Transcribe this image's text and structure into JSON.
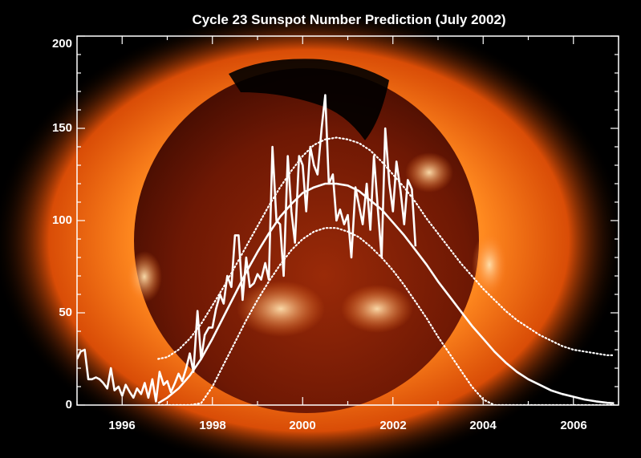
{
  "chart_data": {
    "type": "line",
    "title": "Cycle 23 Sunspot Number Prediction (July 2002)",
    "xlabel": "",
    "ylabel": "",
    "xlim": [
      1995.0,
      2007.0
    ],
    "ylim": [
      0,
      200
    ],
    "x_ticks": [
      1996,
      1998,
      2000,
      2002,
      2004,
      2006
    ],
    "y_ticks": [
      0,
      50,
      100,
      150,
      200
    ],
    "grid": false,
    "legend": "none",
    "colors": {
      "background": "#000000",
      "lines": "#ffffff",
      "sun_core": "#6a1604",
      "sun_corona": "#ff6a10"
    },
    "series": [
      {
        "style": "solid-jagged",
        "x": [
          1995.0,
          1995.08,
          1995.17,
          1995.25,
          1995.33,
          1995.42,
          1995.5,
          1995.58,
          1995.67,
          1995.75,
          1995.83,
          1995.92,
          1996.0,
          1996.08,
          1996.17,
          1996.25,
          1996.33,
          1996.42,
          1996.5,
          1996.58,
          1996.67,
          1996.75,
          1996.83,
          1996.92,
          1997.0,
          1997.08,
          1997.17,
          1997.25,
          1997.33,
          1997.42,
          1997.5,
          1997.58,
          1997.67,
          1997.75,
          1997.83,
          1997.92,
          1998.0,
          1998.08,
          1998.17,
          1998.25,
          1998.33,
          1998.42,
          1998.5,
          1998.58,
          1998.67,
          1998.75,
          1998.83,
          1998.92,
          1999.0,
          1999.08,
          1999.17,
          1999.25,
          1999.33,
          1999.42,
          1999.5,
          1999.58,
          1999.67,
          1999.75,
          1999.83,
          1999.92,
          2000.0,
          2000.08,
          2000.17,
          2000.25,
          2000.33,
          2000.42,
          2000.5,
          2000.58,
          2000.67,
          2000.75,
          2000.83,
          2000.92,
          2001.0,
          2001.08,
          2001.17,
          2001.25,
          2001.33,
          2001.42,
          2001.5,
          2001.58,
          2001.67,
          2001.75,
          2001.83,
          2001.92,
          2002.0,
          2002.08,
          2002.17,
          2002.25,
          2002.33,
          2002.42,
          2002.5
        ],
        "y": [
          25,
          29,
          30,
          14,
          14,
          15,
          14,
          12,
          9,
          20,
          8,
          10,
          5,
          11,
          7,
          4,
          9,
          6,
          12,
          4,
          14,
          2,
          18,
          11,
          13,
          7,
          12,
          17,
          13,
          20,
          28,
          18,
          51,
          25,
          38,
          42,
          42,
          52,
          60,
          55,
          70,
          64,
          92,
          92,
          57,
          80,
          64,
          66,
          71,
          68,
          77,
          68,
          140,
          100,
          98,
          70,
          135,
          105,
          88,
          135,
          130,
          105,
          140,
          130,
          125,
          150,
          168,
          120,
          125,
          100,
          106,
          98,
          103,
          80,
          118,
          108,
          98,
          120,
          95,
          135,
          105,
          80,
          150,
          120,
          105,
          132,
          116,
          98,
          122,
          117,
          86
        ]
      },
      {
        "style": "solid-smooth",
        "x": [
          1996.8,
          1997.0,
          1997.25,
          1997.5,
          1997.75,
          1998.0,
          1998.25,
          1998.5,
          1998.75,
          1999.0,
          1999.25,
          1999.5,
          1999.75,
          2000.0,
          2000.25,
          2000.5,
          2000.75,
          2001.0,
          2001.25,
          2001.5,
          2001.75,
          2002.0,
          2002.25,
          2002.5,
          2002.75,
          2003.0,
          2003.25,
          2003.5,
          2003.75,
          2004.0,
          2004.25,
          2004.5,
          2004.75,
          2005.0,
          2005.25,
          2005.5,
          2005.75,
          2006.0,
          2006.25,
          2006.5,
          2006.75,
          2006.9
        ],
        "y": [
          1,
          4,
          9,
          16,
          25,
          36,
          48,
          60,
          72,
          83,
          93,
          102,
          109,
          115,
          118,
          120,
          120,
          119,
          116,
          111,
          106,
          99,
          92,
          84,
          76,
          67,
          59,
          51,
          43,
          36,
          29,
          23,
          18,
          14,
          11,
          8,
          6,
          4.5,
          3,
          2,
          1.2,
          1
        ]
      },
      {
        "style": "dotted",
        "x": [
          1996.8,
          1997.0,
          1997.25,
          1997.5,
          1997.75,
          1998.0,
          1998.25,
          1998.5,
          1998.75,
          1999.0,
          1999.25,
          1999.5,
          1999.75,
          2000.0,
          2000.25,
          2000.5,
          2000.75,
          2001.0,
          2001.25,
          2001.5,
          2001.75,
          2002.0,
          2002.25,
          2002.5,
          2002.75,
          2003.0,
          2003.25,
          2003.5,
          2003.75,
          2004.0,
          2004.25,
          2004.5,
          2004.75,
          2005.0,
          2005.25,
          2005.5,
          2005.75,
          2006.0,
          2006.25,
          2006.5,
          2006.75,
          2006.9
        ],
        "y": [
          25,
          26,
          30,
          36,
          44,
          54,
          64,
          75,
          86,
          97,
          108,
          118,
          127,
          135,
          141,
          144,
          145,
          144,
          142,
          138,
          132,
          125,
          118,
          110,
          101,
          93,
          85,
          77,
          70,
          63,
          57,
          51,
          46,
          42,
          38,
          35,
          32,
          30,
          29,
          28,
          27,
          27
        ]
      },
      {
        "style": "dotted",
        "x": [
          1996.8,
          1997.0,
          1997.25,
          1997.5,
          1997.75,
          1998.0,
          1998.25,
          1998.5,
          1998.75,
          1999.0,
          1999.25,
          1999.5,
          1999.75,
          2000.0,
          2000.25,
          2000.5,
          2000.75,
          2001.0,
          2001.25,
          2001.5,
          2001.75,
          2002.0,
          2002.25,
          2002.5,
          2002.75,
          2003.0,
          2003.25,
          2003.5,
          2003.75,
          2004.0,
          2004.25,
          2004.5,
          2004.75,
          2005.0,
          2005.25,
          2005.5,
          2005.75,
          2006.0,
          2006.25,
          2006.5,
          2006.75,
          2006.9
        ],
        "y": [
          0,
          0,
          0,
          0,
          1,
          10,
          22,
          34,
          46,
          57,
          67,
          76,
          84,
          90,
          94,
          96,
          96,
          94,
          91,
          86,
          80,
          73,
          65,
          56,
          47,
          37,
          28,
          19,
          10,
          3,
          0,
          0,
          0,
          0,
          0,
          0,
          0,
          0,
          0,
          0,
          0,
          0
        ]
      }
    ]
  }
}
